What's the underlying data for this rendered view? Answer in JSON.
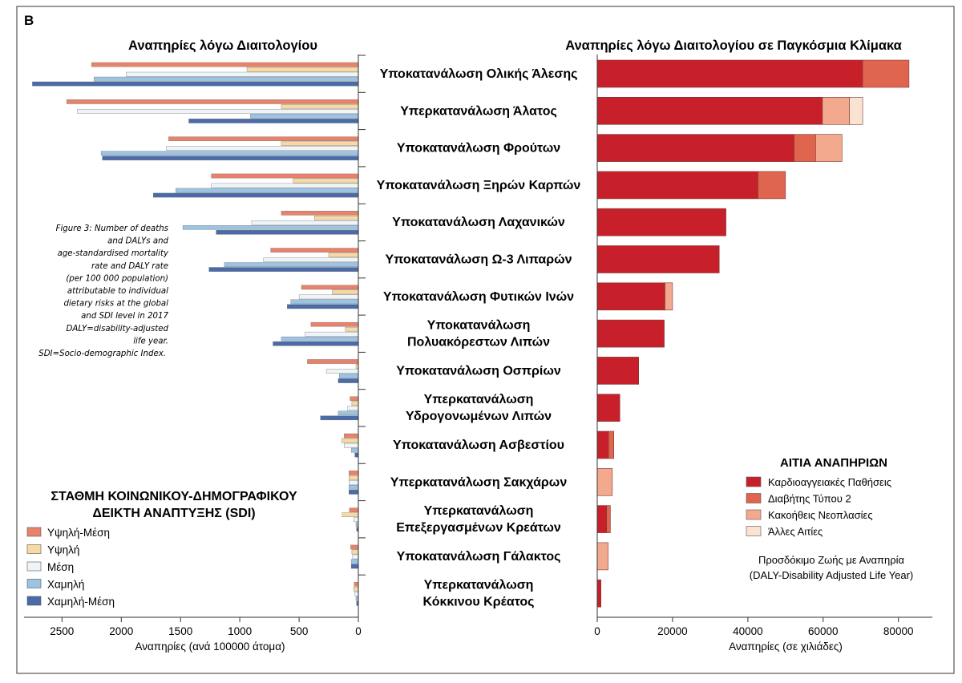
{
  "panel_label": "B",
  "chart_data": [
    {
      "type": "bar",
      "orientation": "horizontal",
      "direction": "right-to-left",
      "title": "Αναπηρίες λόγω Διαιτολογίου",
      "xlabel": "Αναπηρίες (ανά 100000 άτομα)",
      "xlim": [
        0,
        2820
      ],
      "xticks": [
        2500,
        2000,
        1500,
        1000,
        500,
        0
      ],
      "categories": [
        "Υποκατανάλωση Ολικής Άλεσης",
        "Υπερκατανάλωση Άλατος",
        "Υποκατανάλωση Φρούτων",
        "Υποκατανάλωση Ξηρών Καρπών",
        "Υποκατανάλωση Λαχανικών",
        "Υποκατανάλωση Ω-3 Λιπαρών",
        "Υποκατανάλωση Φυτικών Ινών",
        "Υποκατανάλωση Πολυακόρεστων Λιπών",
        "Υποκατανάλωση Οσπρίων",
        "Υπερκατανάλωση Υδρογονωμένων Λιπών",
        "Υποκατανάλωση Ασβεστίου",
        "Υπερκατανάλωση Σακχάρων",
        "Υπερκατανάλωση Επεξεργασμένων Κρεάτων",
        "Υποκατανάλωση Γάλακτος",
        "Υπερκατανάλωση Κόκκινου Κρέατος"
      ],
      "series": [
        {
          "name": "Υψηλή-Μέση",
          "color": "#e8826a",
          "values": [
            2250,
            2460,
            1600,
            1240,
            650,
            740,
            480,
            400,
            430,
            70,
            120,
            80,
            75,
            65,
            35
          ]
        },
        {
          "name": "Υψηλή",
          "color": "#f6d9a4",
          "values": [
            940,
            650,
            650,
            550,
            370,
            250,
            220,
            110,
            20,
            55,
            140,
            80,
            220,
            55,
            40
          ]
        },
        {
          "name": "Μέση",
          "color": "#eef4f8",
          "values": [
            1960,
            2370,
            1620,
            1240,
            900,
            800,
            500,
            450,
            270,
            90,
            120,
            80,
            40,
            50,
            30
          ]
        },
        {
          "name": "Χαμηλή",
          "color": "#9dc3e3",
          "values": [
            2230,
            910,
            2170,
            1540,
            1480,
            1130,
            570,
            650,
            160,
            170,
            60,
            80,
            20,
            60,
            20
          ]
        },
        {
          "name": "Χαμηλή-Μέση",
          "color": "#4a6aa8",
          "values": [
            2750,
            1430,
            2160,
            1730,
            1200,
            1260,
            600,
            720,
            170,
            320,
            30,
            80,
            15,
            60,
            15
          ]
        }
      ],
      "annotation": "Figure 3: Number of deaths and DALYs and age-standardised mortality rate and DALY rate (per 100 000 population) attributable to individual dietary risks at the global and SDI level in 2017 DALY=disability-adjusted life year. SDI=Socio-demographic Index.",
      "legend": {
        "title_lines": [
          "ΣΤΑΘΜΗ ΚΟΙΝΩΝΙΚΟΥ-ΔΗΜΟΓΡΑΦΙΚΟΥ",
          "ΔΕΙΚΤΗ ΑΝΑΠΤΥΞΗΣ (SDI)"
        ],
        "placement": "bottom-left"
      }
    },
    {
      "type": "bar",
      "orientation": "horizontal",
      "stacked": true,
      "title": "Αναπηρίες λόγω Διαιτολογίου σε Παγκόσμια Κλίμακα",
      "xlabel": "Αναπηρίες (σε χιλιάδες)",
      "xlim": [
        0,
        89000
      ],
      "xticks": [
        0,
        20000,
        40000,
        60000,
        80000
      ],
      "category_labels": [
        [
          "Υποκατανάλωση Ολικής Άλεσης"
        ],
        [
          "Υπερκατανάλωση Άλατος"
        ],
        [
          "Υποκατανάλωση Φρούτων"
        ],
        [
          "Υποκατανάλωση Ξηρών Καρπών"
        ],
        [
          "Υποκατανάλωση Λαχανικών"
        ],
        [
          "Υποκατανάλωση Ω-3 Λιπαρών"
        ],
        [
          "Υποκατανάλωση Φυτικών Ινών"
        ],
        [
          "Υποκατανάλωση",
          "Πολυακόρεστων Λιπών"
        ],
        [
          "Υποκατανάλωση Οσπρίων"
        ],
        [
          "Υπερκατανάλωση",
          "Υδρογονωμένων Λιπών"
        ],
        [
          "Υποκατανάλωση  Ασβεστίου"
        ],
        [
          "Υπερκατανάλωση Σακχάρων"
        ],
        [
          "Υπερκατανάλωση",
          "Επεξεργασμένων Κρεάτων"
        ],
        [
          "Υποκατανάλωση Γάλακτος"
        ],
        [
          "Υπερκατανάλωση",
          "Κόκκινου Κρέατος"
        ]
      ],
      "series": [
        {
          "name": "Καρδιοαγγειακές Παθήσεις",
          "color": "#c8202a",
          "values": [
            70500,
            59800,
            52300,
            42700,
            34200,
            32400,
            18000,
            17800,
            11000,
            6000,
            3000,
            0,
            2500,
            0,
            1000
          ]
        },
        {
          "name": "Διαβήτης Τύπου 2",
          "color": "#e0654f",
          "values": [
            12300,
            0,
            5700,
            7300,
            0,
            0,
            0,
            0,
            0,
            0,
            1400,
            0,
            1000,
            0,
            0
          ]
        },
        {
          "name": "Κακοήθεις Νεοπλασίες",
          "color": "#f3a98d",
          "values": [
            0,
            7200,
            7000,
            0,
            0,
            0,
            2000,
            0,
            0,
            0,
            0,
            4000,
            0,
            2900,
            0
          ]
        },
        {
          "name": "Άλλες Αιτίες",
          "color": "#fbe3d3",
          "values": [
            0,
            3500,
            0,
            0,
            0,
            0,
            0,
            0,
            0,
            0,
            0,
            0,
            0,
            0,
            0
          ]
        }
      ],
      "legend": {
        "title": "ΑΙΤΙΑ  ΑΝΑΠΗΡΙΩΝ",
        "placement": "bottom-right",
        "footnote_lines": [
          "Προσδόκιμο Ζωής με Αναπηρία",
          "(DALY-Disability Adjusted Life Year)"
        ]
      }
    }
  ]
}
